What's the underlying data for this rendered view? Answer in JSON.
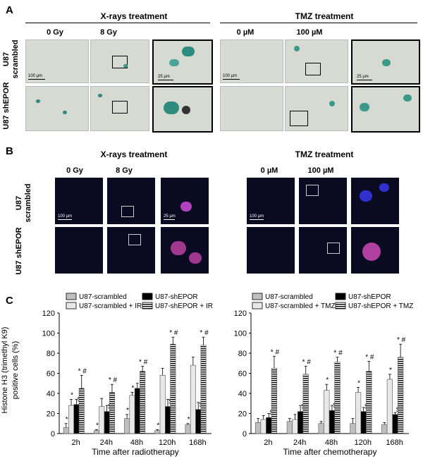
{
  "panelA": {
    "letter": "A",
    "xray_title": "X-rays treatment",
    "tmz_title": "TMZ treatment",
    "cols": [
      "0 Gy",
      "8 Gy",
      "0 µM",
      "100 µM"
    ],
    "rows": [
      "U87 scrambled",
      "U87 shEPOR"
    ],
    "scale_100": "100 µm",
    "scale_25": "25 µm"
  },
  "panelB": {
    "letter": "B",
    "xray_title": "X-rays treatment",
    "tmz_title": "TMZ treatment",
    "cols": [
      "0 Gy",
      "8 Gy",
      "0 µM",
      "100 µM"
    ],
    "rows": [
      "U87 scrambled",
      "U87 shEPOR"
    ],
    "scale_100": "100 µm",
    "scale_25": "25 µm"
  },
  "panelC": {
    "letter": "C",
    "ylabel_line1": "Histone H3 (trimethyl K9)",
    "ylabel_line2": "positive cells (%)",
    "colors": {
      "scr": "#bfbfbf",
      "shepor": "#000000",
      "treated_scr": "#e8e8e8",
      "treated_shepor": "#ffffff"
    }
  },
  "chart_data": [
    {
      "type": "bar",
      "xlabel": "Time after radiotherapy",
      "categories": [
        "2h",
        "24h",
        "48h",
        "120h",
        "168h"
      ],
      "ylim": [
        0,
        120
      ],
      "yticks": [
        0,
        20,
        40,
        60,
        80,
        100,
        120
      ],
      "legend": [
        "U87-scrambled",
        "U87-shEPOR",
        "U87-scrambled + IR",
        "U87-shEPOR + IR"
      ],
      "series": [
        {
          "name": "U87-scrambled",
          "values": [
            6,
            3,
            15,
            3,
            9
          ],
          "errors": [
            4,
            1,
            4,
            1,
            1
          ]
        },
        {
          "name": "U87-scrambled + IR",
          "values": [
            28,
            27,
            38,
            58,
            68
          ],
          "errors": [
            6,
            8,
            3,
            7,
            8
          ]
        },
        {
          "name": "U87-shEPOR",
          "values": [
            29,
            22,
            45,
            27,
            24
          ],
          "errors": [
            5,
            6,
            5,
            7,
            7
          ]
        },
        {
          "name": "U87-shEPOR + IR",
          "values": [
            45,
            41,
            62,
            89,
            88
          ],
          "errors": [
            13,
            8,
            5,
            7,
            8
          ]
        }
      ],
      "annotations": [
        [
          "*",
          "*",
          "$",
          "* #"
        ],
        [
          "*",
          "",
          "$",
          "* #"
        ],
        [
          "*",
          "*",
          "",
          "* #"
        ],
        [
          "*",
          "",
          "$",
          "* #"
        ],
        [
          "*",
          "",
          "$",
          "* #"
        ]
      ]
    },
    {
      "type": "bar",
      "xlabel": "Time after chemotherapy",
      "categories": [
        "2h",
        "24h",
        "48h",
        "120h",
        "168h"
      ],
      "ylim": [
        0,
        120
      ],
      "yticks": [
        0,
        20,
        40,
        60,
        80,
        100,
        120
      ],
      "legend": [
        "U87-scrambled",
        "U87-shEPOR",
        "U87-scrambled + TMZ",
        "U87-shEPOR + TMZ"
      ],
      "series": [
        {
          "name": "U87-scrambled",
          "values": [
            11,
            12,
            10,
            10,
            9
          ],
          "errors": [
            4,
            3,
            2,
            5,
            2
          ]
        },
        {
          "name": "U87-scrambled + TMZ",
          "values": [
            14,
            14,
            43,
            41,
            54
          ],
          "errors": [
            4,
            5,
            6,
            5,
            5
          ]
        },
        {
          "name": "U87-shEPOR",
          "values": [
            16,
            22,
            23,
            22,
            19
          ],
          "errors": [
            4,
            6,
            5,
            4,
            2
          ]
        },
        {
          "name": "U87-shEPOR + TMZ",
          "values": [
            65,
            59,
            71,
            62,
            76
          ],
          "errors": [
            12,
            8,
            5,
            10,
            13
          ]
        }
      ],
      "annotations": [
        [
          "",
          "",
          "$",
          "* #"
        ],
        [
          "",
          "",
          "$",
          "* #"
        ],
        [
          "",
          "*",
          "$",
          "* #"
        ],
        [
          "",
          "*",
          "$",
          "* #"
        ],
        [
          "",
          "*",
          "$",
          "* #"
        ]
      ]
    }
  ]
}
